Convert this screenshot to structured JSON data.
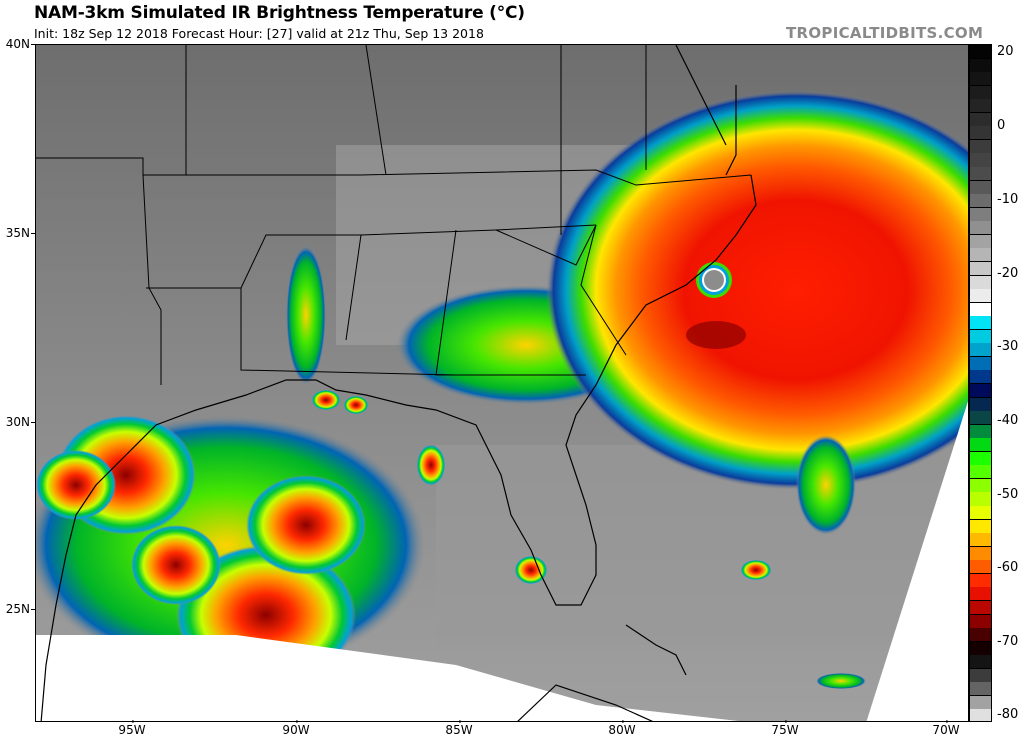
{
  "header": {
    "title": "NAM-3km Simulated IR Brightness Temperature (°C)",
    "subtitle": "Init: 18z Sep 12 2018   Forecast Hour: [27]   valid at 21z Thu, Sep 13 2018",
    "brand": "TROPICALTIDBITS.COM"
  },
  "map": {
    "model": "NAM-3km",
    "field": "Simulated IR Brightness Temperature",
    "units": "°C",
    "init": "18z Sep 12 2018",
    "forecast_hour": "27",
    "valid": "21z Thu, Sep 13 2018",
    "lat_labels": [
      "40N",
      "35N",
      "30N",
      "25N"
    ],
    "lon_labels": [
      "95W",
      "90W",
      "85W",
      "80W",
      "75W",
      "70W"
    ],
    "features": [
      {
        "name": "hurricane-florence",
        "description": "Large hurricane with clear eye off the North Carolina coast",
        "approx_lat": 33.8,
        "approx_lon": -76.8
      },
      {
        "name": "gulf-convection",
        "description": "Disturbed convection over western Gulf of Mexico near Texas coast"
      }
    ]
  },
  "colorbar": {
    "ticks": [
      "20",
      "0",
      "-10",
      "-20",
      "-30",
      "-40",
      "-50",
      "-60",
      "-70",
      "-80"
    ],
    "range": [
      20,
      -80
    ],
    "colors": {
      "warm_gray_top": "#000000",
      "gray_mid": "#808080",
      "white": "#ffffff",
      "cyan": "#00e5f0",
      "blue": "#0a3c9c",
      "navy": "#000a5a",
      "dark_teal": "#0a4646",
      "green": "#00c832",
      "bright_green": "#00ff00",
      "yellow": "#ffff00",
      "orange": "#ff8c00",
      "red": "#ff1400",
      "dark_red": "#8c0000",
      "black": "#000000",
      "light_gray_bottom": "#e6e6e6"
    }
  }
}
